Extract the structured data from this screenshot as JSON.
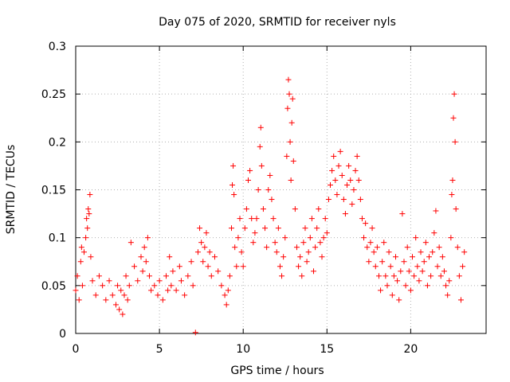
{
  "chart_data": {
    "type": "scatter",
    "title": "Day 075 of 2020, SRMTID for receiver nyls",
    "xlabel": "GPS time / hours",
    "ylabel": "SRMTID / TECUs",
    "xlim": [
      0,
      24.5
    ],
    "ylim": [
      0,
      0.3
    ],
    "xticks": [
      0,
      5,
      10,
      15,
      20
    ],
    "xtick_labels": [
      "0",
      "5",
      "10",
      "15",
      "20"
    ],
    "yticks": [
      0,
      0.05,
      0.1,
      0.15,
      0.2,
      0.25,
      0.3
    ],
    "ytick_labels": [
      "0",
      "0.05",
      "0.1",
      "0.15",
      "0.2",
      "0.25",
      "0.3"
    ],
    "grid": true,
    "marker": "plus",
    "color": "#ff0000",
    "series": [
      {
        "name": "SRMTID",
        "points": [
          [
            0.0,
            0.045
          ],
          [
            0.1,
            0.06
          ],
          [
            0.2,
            0.035
          ],
          [
            0.3,
            0.075
          ],
          [
            0.35,
            0.09
          ],
          [
            0.4,
            0.05
          ],
          [
            0.5,
            0.085
          ],
          [
            0.6,
            0.1
          ],
          [
            0.65,
            0.12
          ],
          [
            0.7,
            0.11
          ],
          [
            0.75,
            0.13
          ],
          [
            0.8,
            0.125
          ],
          [
            0.85,
            0.145
          ],
          [
            0.9,
            0.08
          ],
          [
            1.0,
            0.055
          ],
          [
            1.2,
            0.04
          ],
          [
            1.4,
            0.06
          ],
          [
            1.6,
            0.05
          ],
          [
            1.8,
            0.035
          ],
          [
            2.0,
            0.055
          ],
          [
            2.2,
            0.04
          ],
          [
            2.4,
            0.03
          ],
          [
            2.5,
            0.05
          ],
          [
            2.6,
            0.025
          ],
          [
            2.7,
            0.045
          ],
          [
            2.8,
            0.02
          ],
          [
            2.9,
            0.04
          ],
          [
            3.0,
            0.06
          ],
          [
            3.1,
            0.035
          ],
          [
            3.2,
            0.05
          ],
          [
            3.3,
            0.095
          ],
          [
            3.5,
            0.07
          ],
          [
            3.7,
            0.055
          ],
          [
            3.9,
            0.08
          ],
          [
            4.0,
            0.065
          ],
          [
            4.1,
            0.09
          ],
          [
            4.2,
            0.075
          ],
          [
            4.3,
            0.1
          ],
          [
            4.4,
            0.06
          ],
          [
            4.5,
            0.045
          ],
          [
            4.7,
            0.05
          ],
          [
            4.9,
            0.04
          ],
          [
            5.0,
            0.055
          ],
          [
            5.2,
            0.035
          ],
          [
            5.4,
            0.06
          ],
          [
            5.5,
            0.045
          ],
          [
            5.6,
            0.08
          ],
          [
            5.7,
            0.05
          ],
          [
            5.8,
            0.065
          ],
          [
            6.0,
            0.045
          ],
          [
            6.2,
            0.07
          ],
          [
            6.3,
            0.055
          ],
          [
            6.5,
            0.04
          ],
          [
            6.7,
            0.06
          ],
          [
            6.9,
            0.075
          ],
          [
            7.0,
            0.05
          ],
          [
            7.15,
            0.001
          ],
          [
            7.3,
            0.085
          ],
          [
            7.4,
            0.11
          ],
          [
            7.5,
            0.095
          ],
          [
            7.6,
            0.075
          ],
          [
            7.7,
            0.09
          ],
          [
            7.8,
            0.105
          ],
          [
            7.9,
            0.07
          ],
          [
            8.0,
            0.085
          ],
          [
            8.1,
            0.06
          ],
          [
            8.3,
            0.08
          ],
          [
            8.5,
            0.065
          ],
          [
            8.7,
            0.05
          ],
          [
            8.9,
            0.04
          ],
          [
            9.0,
            0.03
          ],
          [
            9.1,
            0.045
          ],
          [
            9.2,
            0.06
          ],
          [
            9.3,
            0.11
          ],
          [
            9.35,
            0.155
          ],
          [
            9.4,
            0.175
          ],
          [
            9.45,
            0.145
          ],
          [
            9.5,
            0.09
          ],
          [
            9.6,
            0.07
          ],
          [
            9.7,
            0.1
          ],
          [
            9.8,
            0.12
          ],
          [
            9.9,
            0.085
          ],
          [
            10.0,
            0.07
          ],
          [
            10.1,
            0.11
          ],
          [
            10.2,
            0.13
          ],
          [
            10.3,
            0.16
          ],
          [
            10.4,
            0.17
          ],
          [
            10.5,
            0.12
          ],
          [
            10.6,
            0.095
          ],
          [
            10.7,
            0.105
          ],
          [
            10.8,
            0.12
          ],
          [
            10.9,
            0.15
          ],
          [
            11.0,
            0.195
          ],
          [
            11.05,
            0.215
          ],
          [
            11.1,
            0.175
          ],
          [
            11.2,
            0.13
          ],
          [
            11.3,
            0.11
          ],
          [
            11.4,
            0.09
          ],
          [
            11.5,
            0.15
          ],
          [
            11.6,
            0.165
          ],
          [
            11.7,
            0.14
          ],
          [
            11.8,
            0.12
          ],
          [
            11.9,
            0.095
          ],
          [
            12.0,
            0.085
          ],
          [
            12.1,
            0.11
          ],
          [
            12.2,
            0.07
          ],
          [
            12.3,
            0.06
          ],
          [
            12.4,
            0.08
          ],
          [
            12.5,
            0.1
          ],
          [
            12.6,
            0.185
          ],
          [
            12.65,
            0.235
          ],
          [
            12.7,
            0.265
          ],
          [
            12.75,
            0.25
          ],
          [
            12.8,
            0.2
          ],
          [
            12.85,
            0.16
          ],
          [
            12.9,
            0.22
          ],
          [
            12.95,
            0.245
          ],
          [
            13.0,
            0.18
          ],
          [
            13.1,
            0.13
          ],
          [
            13.2,
            0.09
          ],
          [
            13.3,
            0.07
          ],
          [
            13.4,
            0.08
          ],
          [
            13.5,
            0.06
          ],
          [
            13.6,
            0.095
          ],
          [
            13.7,
            0.11
          ],
          [
            13.8,
            0.075
          ],
          [
            13.9,
            0.085
          ],
          [
            14.0,
            0.1
          ],
          [
            14.1,
            0.12
          ],
          [
            14.2,
            0.065
          ],
          [
            14.3,
            0.09
          ],
          [
            14.4,
            0.11
          ],
          [
            14.5,
            0.13
          ],
          [
            14.6,
            0.095
          ],
          [
            14.7,
            0.08
          ],
          [
            14.8,
            0.1
          ],
          [
            14.9,
            0.12
          ],
          [
            15.0,
            0.105
          ],
          [
            15.1,
            0.14
          ],
          [
            15.2,
            0.155
          ],
          [
            15.3,
            0.17
          ],
          [
            15.4,
            0.185
          ],
          [
            15.5,
            0.16
          ],
          [
            15.6,
            0.145
          ],
          [
            15.7,
            0.175
          ],
          [
            15.8,
            0.19
          ],
          [
            15.9,
            0.165
          ],
          [
            16.0,
            0.14
          ],
          [
            16.1,
            0.125
          ],
          [
            16.2,
            0.155
          ],
          [
            16.3,
            0.175
          ],
          [
            16.4,
            0.16
          ],
          [
            16.5,
            0.135
          ],
          [
            16.6,
            0.15
          ],
          [
            16.7,
            0.17
          ],
          [
            16.8,
            0.185
          ],
          [
            16.9,
            0.16
          ],
          [
            17.0,
            0.14
          ],
          [
            17.1,
            0.12
          ],
          [
            17.2,
            0.1
          ],
          [
            17.3,
            0.115
          ],
          [
            17.4,
            0.09
          ],
          [
            17.5,
            0.075
          ],
          [
            17.6,
            0.095
          ],
          [
            17.7,
            0.11
          ],
          [
            17.8,
            0.085
          ],
          [
            17.9,
            0.07
          ],
          [
            18.0,
            0.09
          ],
          [
            18.1,
            0.06
          ],
          [
            18.2,
            0.045
          ],
          [
            18.3,
            0.075
          ],
          [
            18.4,
            0.095
          ],
          [
            18.5,
            0.06
          ],
          [
            18.6,
            0.05
          ],
          [
            18.7,
            0.085
          ],
          [
            18.8,
            0.07
          ],
          [
            18.9,
            0.04
          ],
          [
            19.0,
            0.06
          ],
          [
            19.1,
            0.08
          ],
          [
            19.2,
            0.055
          ],
          [
            19.3,
            0.035
          ],
          [
            19.4,
            0.065
          ],
          [
            19.5,
            0.125
          ],
          [
            19.6,
            0.075
          ],
          [
            19.7,
            0.05
          ],
          [
            19.8,
            0.09
          ],
          [
            19.9,
            0.065
          ],
          [
            20.0,
            0.045
          ],
          [
            20.1,
            0.08
          ],
          [
            20.2,
            0.06
          ],
          [
            20.3,
            0.1
          ],
          [
            20.4,
            0.07
          ],
          [
            20.5,
            0.055
          ],
          [
            20.6,
            0.085
          ],
          [
            20.7,
            0.065
          ],
          [
            20.8,
            0.075
          ],
          [
            20.9,
            0.095
          ],
          [
            21.0,
            0.05
          ],
          [
            21.1,
            0.08
          ],
          [
            21.2,
            0.06
          ],
          [
            21.3,
            0.085
          ],
          [
            21.4,
            0.105
          ],
          [
            21.5,
            0.128
          ],
          [
            21.6,
            0.07
          ],
          [
            21.7,
            0.09
          ],
          [
            21.8,
            0.06
          ],
          [
            21.9,
            0.08
          ],
          [
            22.0,
            0.065
          ],
          [
            22.1,
            0.05
          ],
          [
            22.2,
            0.04
          ],
          [
            22.3,
            0.055
          ],
          [
            22.4,
            0.1
          ],
          [
            22.45,
            0.145
          ],
          [
            22.5,
            0.16
          ],
          [
            22.55,
            0.225
          ],
          [
            22.6,
            0.25
          ],
          [
            22.65,
            0.2
          ],
          [
            22.7,
            0.13
          ],
          [
            22.8,
            0.09
          ],
          [
            22.9,
            0.06
          ],
          [
            23.0,
            0.035
          ],
          [
            23.1,
            0.07
          ],
          [
            23.2,
            0.085
          ]
        ]
      }
    ]
  }
}
